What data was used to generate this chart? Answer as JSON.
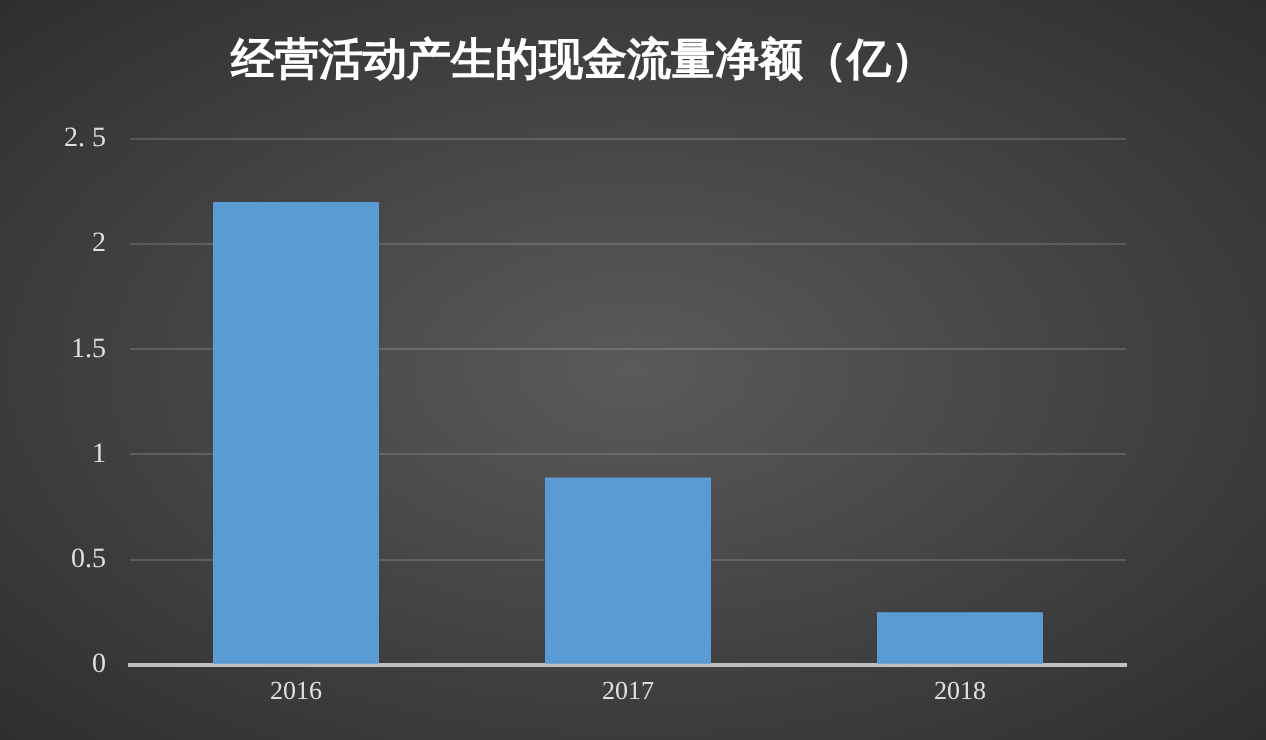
{
  "chart_data": {
    "type": "bar",
    "title": "经营活动产生的现金流量净额（亿）",
    "categories": [
      "2016",
      "2017",
      "2018"
    ],
    "values": [
      2.2,
      0.89,
      0.25
    ],
    "color": "#5b9bd5",
    "ylim": [
      0,
      2.5
    ],
    "yticks": [
      0,
      0.5,
      1,
      1.5,
      2,
      {
        "value": 2.5,
        "label": "2. 5"
      }
    ],
    "grid": "y",
    "legend": false
  }
}
